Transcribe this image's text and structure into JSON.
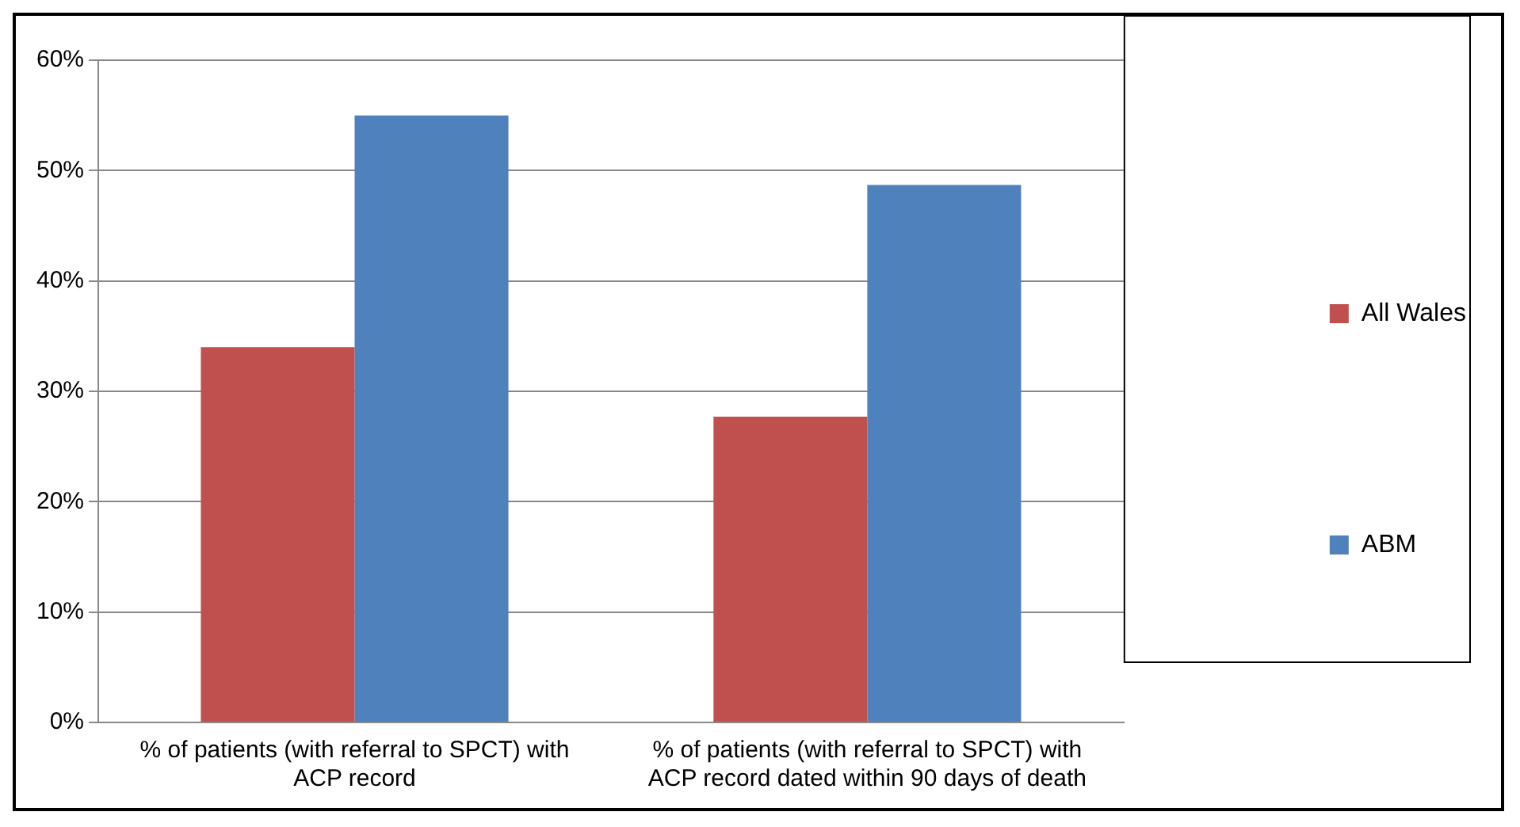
{
  "chart_data": {
    "type": "bar",
    "categories": [
      "% of patients (with referral to SPCT) with ACP record",
      "% of patients (with referral to SPCT) with ACP record dated within 90 days of death"
    ],
    "series": [
      {
        "name": "All Wales",
        "color": "#c0504d",
        "values": [
          34,
          27.7
        ]
      },
      {
        "name": "ABM",
        "color": "#4f81bd",
        "values": [
          55,
          48.7
        ]
      }
    ],
    "ylim": [
      0,
      60
    ],
    "yticks": [
      {
        "value": 0,
        "label": "0%"
      },
      {
        "value": 10,
        "label": "10%"
      },
      {
        "value": 20,
        "label": "20%"
      },
      {
        "value": 30,
        "label": "30%"
      },
      {
        "value": 40,
        "label": "40%"
      },
      {
        "value": 50,
        "label": "50%"
      },
      {
        "value": 60,
        "label": "60%"
      }
    ],
    "grid": "y",
    "legend": "right"
  }
}
